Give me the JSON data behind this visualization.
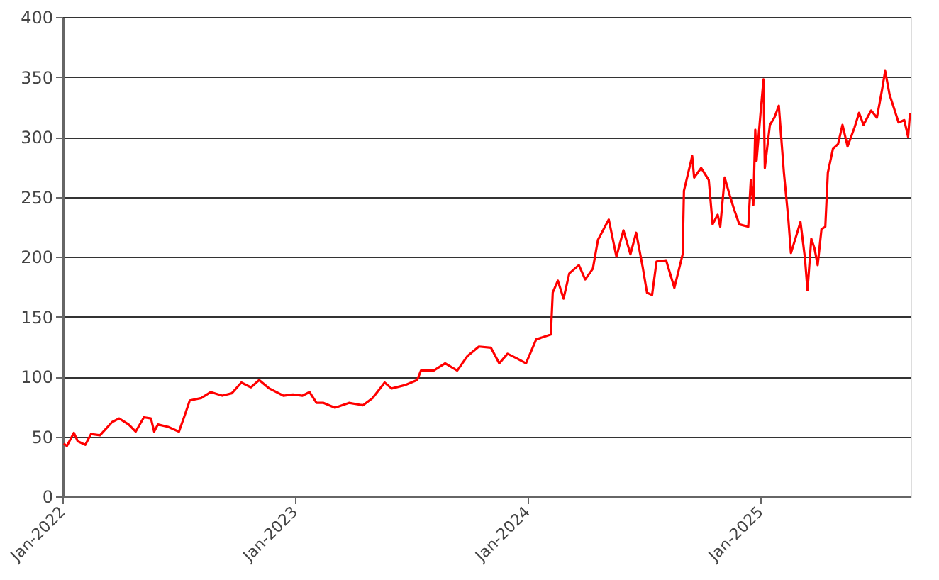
{
  "chart_data": {
    "type": "line",
    "x": [
      "2022-01-03",
      "2022-01-08",
      "2022-01-19",
      "2022-01-25",
      "2022-02-06",
      "2022-02-15",
      "2022-03-01",
      "2022-03-20",
      "2022-03-31",
      "2022-04-15",
      "2022-04-26",
      "2022-05-09",
      "2022-05-20",
      "2022-05-25",
      "2022-05-31",
      "2022-06-16",
      "2022-07-03",
      "2022-07-11",
      "2022-07-20",
      "2022-08-07",
      "2022-08-22",
      "2022-09-09",
      "2022-09-24",
      "2022-10-09",
      "2022-10-24",
      "2022-11-06",
      "2022-11-22",
      "2022-12-14",
      "2022-12-29",
      "2023-01-13",
      "2023-01-24",
      "2023-02-04",
      "2023-02-15",
      "2023-03-05",
      "2023-03-27",
      "2023-04-18",
      "2023-05-03",
      "2023-05-22",
      "2023-06-02",
      "2023-06-24",
      "2023-07-12",
      "2023-07-18",
      "2023-08-07",
      "2023-08-25",
      "2023-09-13",
      "2023-09-29",
      "2023-10-17",
      "2023-11-05",
      "2023-11-18",
      "2023-12-01",
      "2023-12-16",
      "2023-12-30",
      "2024-01-15",
      "2024-02-07",
      "2024-02-10",
      "2024-02-18",
      "2024-02-27",
      "2024-03-07",
      "2024-03-22",
      "2024-04-01",
      "2024-04-13",
      "2024-04-21",
      "2024-05-08",
      "2024-05-20",
      "2024-05-31",
      "2024-06-11",
      "2024-06-20",
      "2024-06-30",
      "2024-07-07",
      "2024-07-15",
      "2024-07-22",
      "2024-08-06",
      "2024-08-19",
      "2024-09-01",
      "2024-09-03",
      "2024-09-16",
      "2024-09-19",
      "2024-09-30",
      "2024-10-12",
      "2024-10-18",
      "2024-10-26",
      "2024-10-30",
      "2024-11-06",
      "2024-11-14",
      "2024-11-21",
      "2024-11-29",
      "2024-12-13",
      "2024-12-17",
      "2024-12-21",
      "2024-12-24",
      "2024-12-26",
      "2025-01-01",
      "2025-01-06",
      "2025-01-08",
      "2025-01-16",
      "2025-01-23",
      "2025-01-30",
      "2025-02-07",
      "2025-02-14",
      "2025-02-18",
      "2025-02-25",
      "2025-03-05",
      "2025-03-12",
      "2025-03-16",
      "2025-03-22",
      "2025-03-27",
      "2025-04-01",
      "2025-04-07",
      "2025-04-13",
      "2025-04-17",
      "2025-04-25",
      "2025-05-03",
      "2025-05-10",
      "2025-05-18",
      "2025-05-29",
      "2025-06-05",
      "2025-06-12",
      "2025-06-24",
      "2025-07-03",
      "2025-07-11",
      "2025-07-16",
      "2025-07-23",
      "2025-07-31",
      "2025-08-06",
      "2025-08-15",
      "2025-08-21",
      "2025-08-24"
    ],
    "series": [
      {
        "color": "#ff0000",
        "values": [
          44,
          42,
          53,
          46,
          43,
          52,
          51,
          62,
          65,
          60,
          54,
          66,
          65,
          54,
          60,
          58,
          54,
          66,
          80,
          82,
          87,
          84,
          86,
          95,
          91,
          97,
          90,
          84,
          85,
          84,
          87,
          78,
          78,
          74,
          78,
          76,
          82,
          95,
          90,
          93,
          97,
          105,
          105,
          111,
          105,
          117,
          125,
          124,
          111,
          119,
          115,
          111,
          131,
          135,
          170,
          180,
          165,
          186,
          193,
          181,
          190,
          214,
          231,
          200,
          222,
          202,
          220,
          192,
          170,
          168,
          196,
          197,
          174,
          202,
          255,
          284,
          266,
          274,
          264,
          227,
          235,
          225,
          266,
          251,
          239,
          227,
          225,
          264,
          243,
          306,
          280,
          318,
          348,
          274,
          310,
          316,
          326,
          270,
          231,
          203,
          215,
          229,
          199,
          172,
          215,
          207,
          193,
          223,
          225,
          270,
          290,
          294,
          310,
          292,
          308,
          320,
          310,
          322,
          316,
          339,
          355,
          335,
          322,
          312,
          314,
          300,
          320
        ]
      }
    ],
    "xlim": [
      "2022-01-01",
      "2025-08-25"
    ],
    "xticks": [
      {
        "value": "2022-01-01",
        "label": "Jan-2022"
      },
      {
        "value": "2023-01-01",
        "label": "Jan-2023"
      },
      {
        "value": "2024-01-01",
        "label": "Jan-2024"
      },
      {
        "value": "2025-01-01",
        "label": "Jan-2025"
      }
    ],
    "ylim": [
      0,
      400
    ],
    "yticks": [
      0,
      50,
      100,
      150,
      200,
      250,
      300,
      350,
      400
    ],
    "grid": "y",
    "legend": false,
    "marker": "none",
    "line_style": "solid"
  }
}
